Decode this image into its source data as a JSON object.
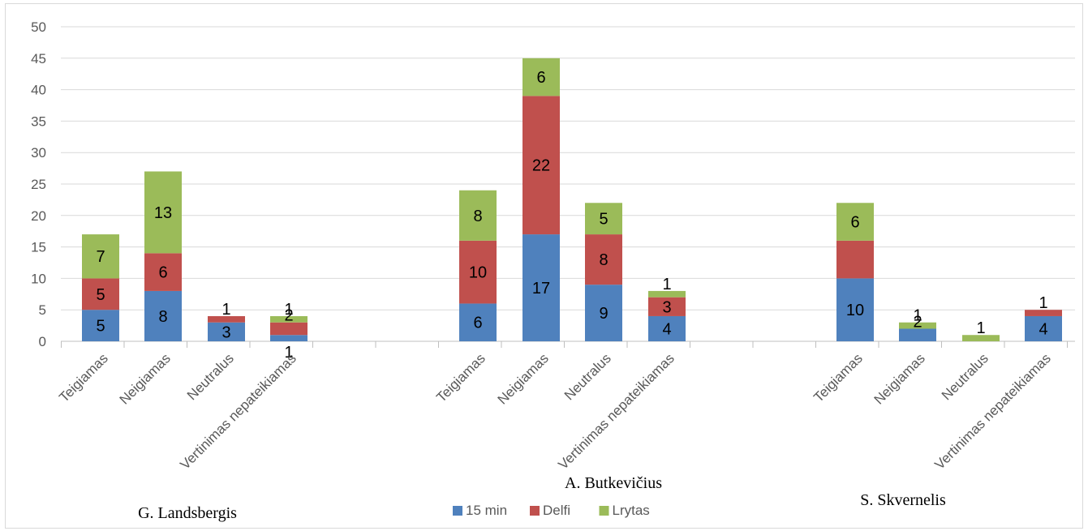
{
  "chart_data": {
    "type": "bar",
    "stacked": true,
    "title": "",
    "xlabel": "",
    "ylabel": "",
    "ylim": [
      0,
      50
    ],
    "yticks": [
      0,
      5,
      10,
      15,
      20,
      25,
      30,
      35,
      40,
      45,
      50
    ],
    "grid": true,
    "legend_position": "bottom",
    "groups": [
      {
        "label": "G. Landsbergis",
        "categories": [
          "Teigiamas",
          "Neigiamas",
          "Neutralus",
          "Vertinimas nepateikiamas"
        ],
        "series": [
          {
            "name": "15 min",
            "values": [
              5,
              8,
              3,
              1
            ],
            "labels": [
              "5",
              "8",
              "3",
              "1"
            ]
          },
          {
            "name": "Delfi",
            "values": [
              5,
              6,
              1,
              2
            ],
            "labels": [
              "5",
              "6",
              "1",
              "2"
            ]
          },
          {
            "name": "Lrytas",
            "values": [
              7,
              13,
              0,
              1
            ],
            "labels": [
              "7",
              "13",
              "",
              "1"
            ]
          }
        ]
      },
      {
        "label": "A. Butkevičius",
        "categories": [
          "Teigiamas",
          "Neigiamas",
          "Neutralus",
          "Vertinimas nepateikiamas"
        ],
        "series": [
          {
            "name": "15 min",
            "values": [
              6,
              17,
              9,
              4
            ],
            "labels": [
              "6",
              "17",
              "9",
              "4"
            ]
          },
          {
            "name": "Delfi",
            "values": [
              10,
              22,
              8,
              3
            ],
            "labels": [
              "10",
              "22",
              "8",
              "3"
            ]
          },
          {
            "name": "Lrytas",
            "values": [
              8,
              6,
              5,
              1
            ],
            "labels": [
              "8",
              "6",
              "5",
              "1"
            ]
          }
        ]
      },
      {
        "label": "S. Skvernelis",
        "categories": [
          "Teigiamas",
          "Neigiamas",
          "Neutralus",
          "Vertinimas nepateikiamas"
        ],
        "series": [
          {
            "name": "15 min",
            "values": [
              10,
              2,
              0,
              4
            ],
            "labels": [
              "10",
              "2",
              "",
              "4"
            ]
          },
          {
            "name": "Delfi",
            "values": [
              6,
              0,
              0,
              1
            ],
            "labels": [
              "",
              "",
              "",
              "1"
            ]
          },
          {
            "name": "Lrytas",
            "values": [
              6,
              1,
              1,
              0
            ],
            "labels": [
              "6",
              "1",
              "1",
              ""
            ]
          }
        ]
      }
    ],
    "series_names": [
      "15 min",
      "Delfi",
      "Lrytas"
    ],
    "colors": {
      "15 min": "#4f81bd",
      "Delfi": "#c0504d",
      "Lrytas": "#9bbb59"
    },
    "gridline_color": "#d9d9d9",
    "axis_color": "#bfbfbf"
  }
}
